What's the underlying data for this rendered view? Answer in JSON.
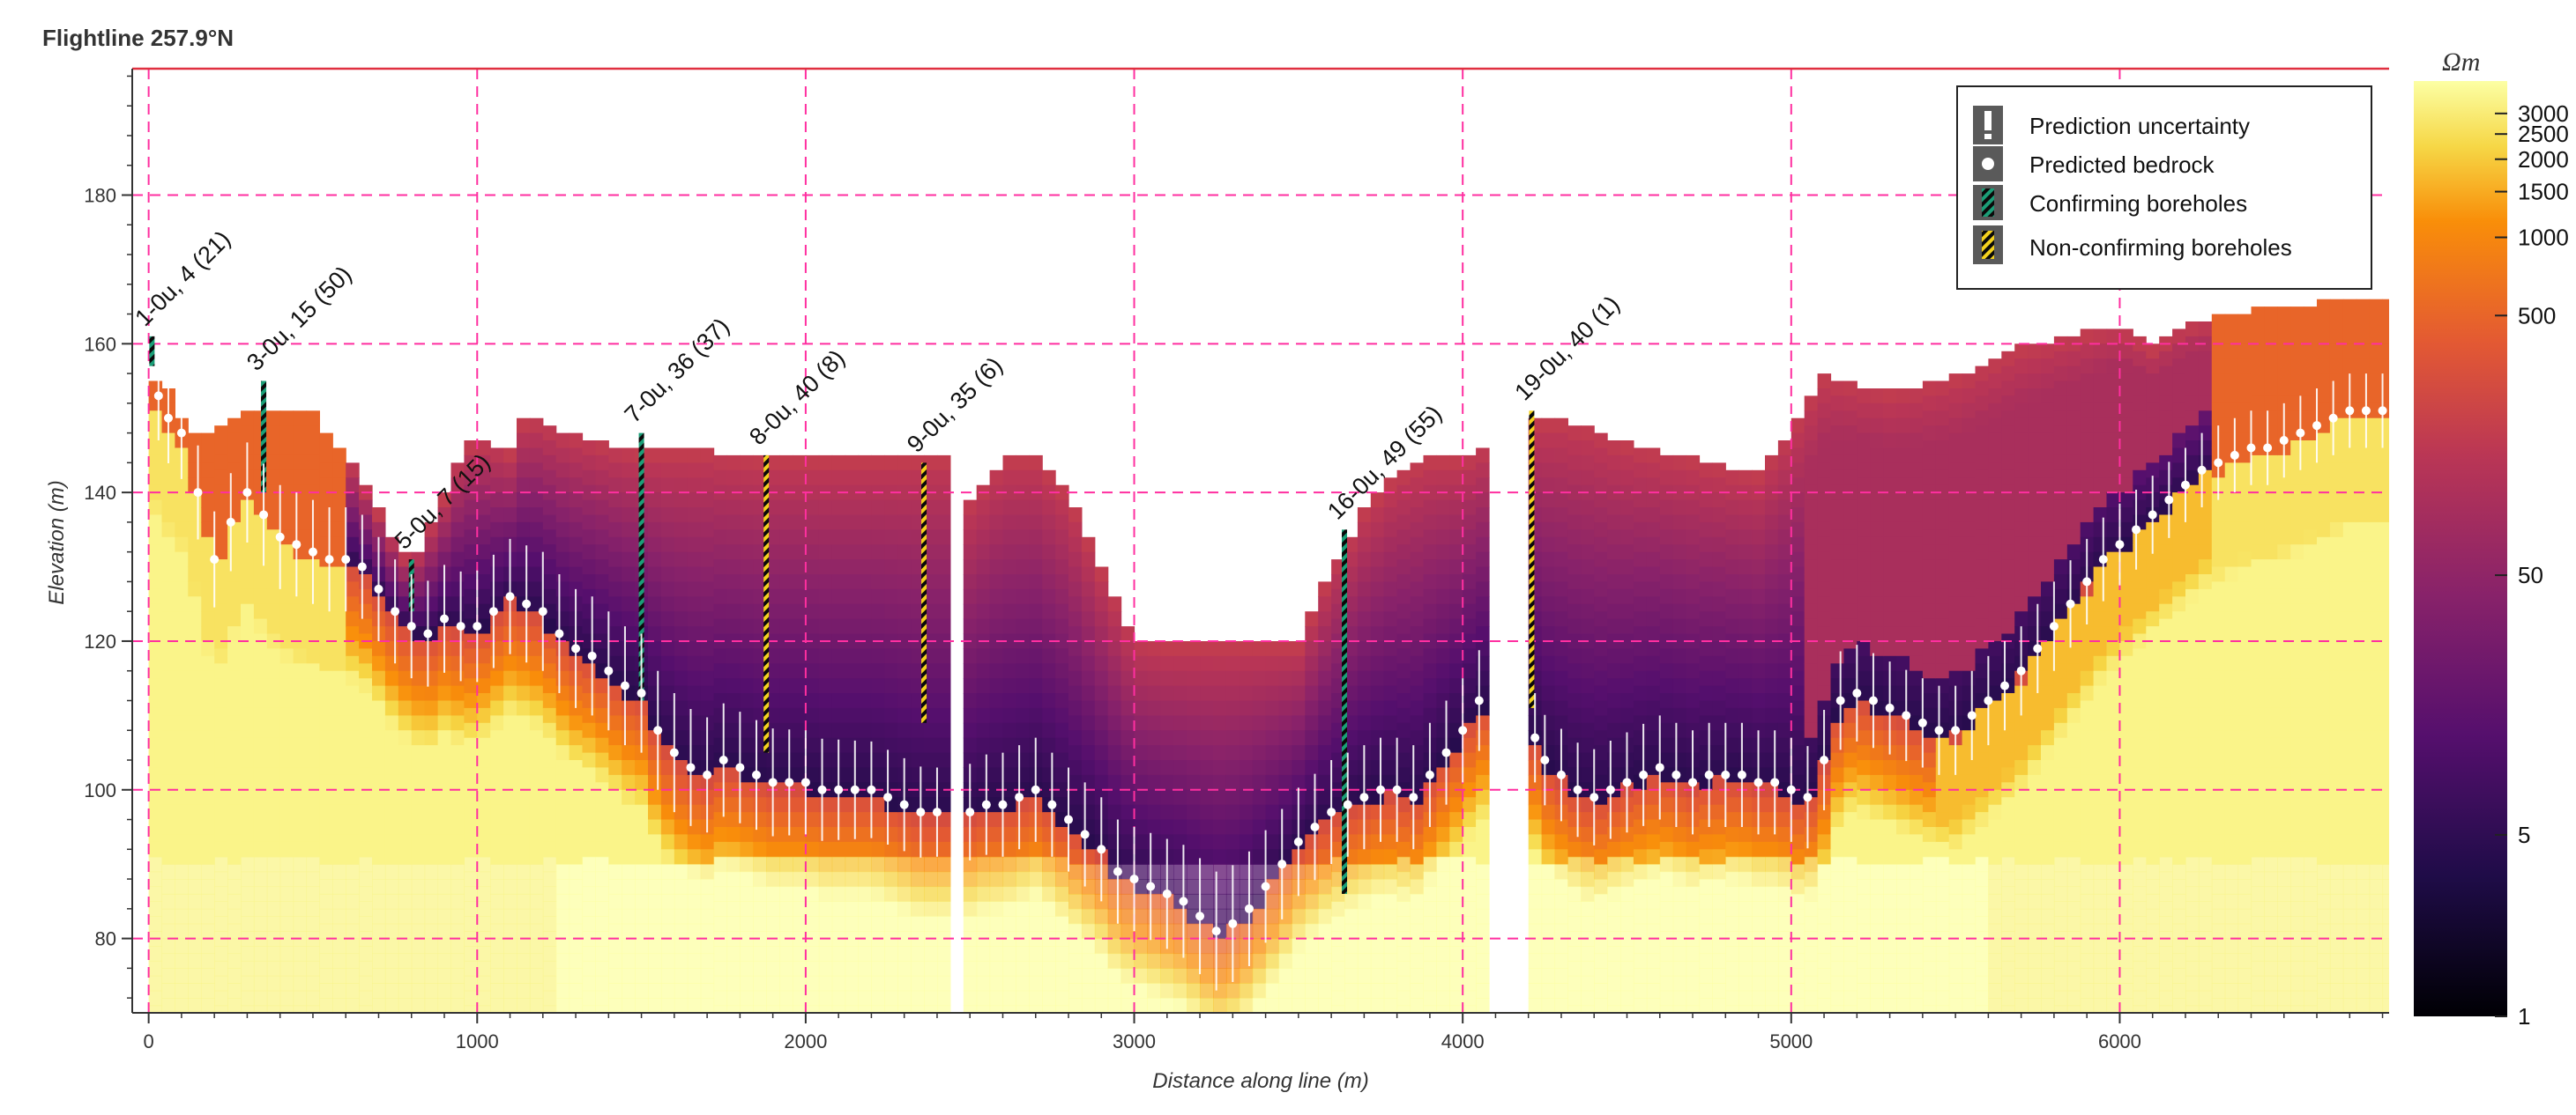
{
  "chart_data": {
    "type": "heatmap",
    "title": "Flightline 257.9°N",
    "xlabel": "Distance along line (m)",
    "ylabel": "Elevation (m)",
    "xlim": [
      -50,
      6820
    ],
    "ylim": [
      70,
      197
    ],
    "x_ticks": [
      0,
      1000,
      2000,
      3000,
      4000,
      5000,
      6000
    ],
    "y_ticks": [
      80,
      100,
      120,
      140,
      160,
      180
    ],
    "reference_line_elevation": 197,
    "colorbar": {
      "unit": "Ωm",
      "scale": "log",
      "range": [
        1,
        4000
      ],
      "tick_values": [
        1,
        5,
        50,
        500,
        1000,
        1500,
        2000,
        2500,
        3000
      ],
      "tick_labels": [
        "1",
        "5",
        "50",
        "500",
        "1000",
        "1500",
        "2000",
        "2500",
        "3000"
      ]
    },
    "legend": {
      "position": "top-right",
      "items": [
        {
          "label": "Prediction uncertainty",
          "symbol": "errorbar"
        },
        {
          "label": "Predicted bedrock",
          "symbol": "dot"
        },
        {
          "label": "Confirming boreholes",
          "symbol": "green-stripe"
        },
        {
          "label": "Non-confirming boreholes",
          "symbol": "yellow-stripe"
        }
      ]
    },
    "data_gaps": [
      [
        2420,
        2490
      ],
      [
        4070,
        4210
      ]
    ],
    "surface_elevation": {
      "x": [
        0,
        50,
        100,
        150,
        200,
        300,
        400,
        500,
        550,
        600,
        650,
        700,
        750,
        800,
        900,
        950,
        1000,
        1100,
        1150,
        1250,
        1400,
        1500,
        1700,
        1850,
        2000,
        2100,
        2200,
        2300,
        2420,
        2490,
        2600,
        2700,
        2800,
        2900,
        3000,
        3100,
        3200,
        3300,
        3400,
        3500,
        3550,
        3600,
        3650,
        3700,
        3800,
        3900,
        4000,
        4070,
        4210,
        4300,
        4400,
        4500,
        4600,
        4700,
        4800,
        4900,
        5000,
        5100,
        5200,
        5300,
        5400,
        5500,
        5600,
        5700,
        5800,
        5900,
        6000,
        6100,
        6200,
        6300,
        6400,
        6500,
        6600,
        6700,
        6800
      ],
      "y": [
        156,
        155,
        150,
        148,
        149,
        151,
        151,
        151,
        148,
        146,
        142,
        138,
        134,
        131,
        140,
        146,
        148,
        146,
        151,
        149,
        147,
        146,
        146,
        145,
        145,
        145,
        145,
        145,
        145,
        139,
        145,
        145,
        140,
        130,
        121,
        120,
        120,
        120,
        120,
        120,
        125,
        130,
        134,
        138,
        143,
        145,
        145,
        147,
        150,
        150,
        149,
        147,
        146,
        145,
        144,
        143,
        149,
        156,
        155,
        154,
        155,
        156,
        158,
        160,
        161,
        162,
        163,
        160,
        163,
        164,
        165,
        165,
        166,
        166,
        166
      ]
    },
    "series": [
      {
        "name": "Predicted bedrock",
        "x": [
          30,
          60,
          100,
          150,
          200,
          250,
          300,
          350,
          400,
          450,
          500,
          550,
          600,
          650,
          700,
          750,
          800,
          850,
          900,
          950,
          1000,
          1050,
          1100,
          1150,
          1200,
          1250,
          1300,
          1350,
          1400,
          1450,
          1500,
          1550,
          1600,
          1650,
          1700,
          1750,
          1800,
          1850,
          1900,
          1950,
          2000,
          2050,
          2100,
          2150,
          2200,
          2250,
          2300,
          2350,
          2400,
          2500,
          2550,
          2600,
          2650,
          2700,
          2750,
          2800,
          2850,
          2900,
          2950,
          3000,
          3050,
          3100,
          3150,
          3200,
          3250,
          3300,
          3350,
          3400,
          3450,
          3500,
          3550,
          3600,
          3650,
          3700,
          3750,
          3800,
          3850,
          3900,
          3950,
          4000,
          4050,
          4220,
          4250,
          4300,
          4350,
          4400,
          4450,
          4500,
          4550,
          4600,
          4650,
          4700,
          4750,
          4800,
          4850,
          4900,
          4950,
          5000,
          5050,
          5100,
          5150,
          5200,
          5250,
          5300,
          5350,
          5400,
          5450,
          5500,
          5550,
          5600,
          5650,
          5700,
          5750,
          5800,
          5850,
          5900,
          5950,
          6000,
          6050,
          6100,
          6150,
          6200,
          6250,
          6300,
          6350,
          6400,
          6450,
          6500,
          6550,
          6600,
          6650,
          6700,
          6750,
          6800
        ],
        "values": [
          153,
          150,
          148,
          140,
          131,
          136,
          140,
          137,
          134,
          133,
          132,
          131,
          131,
          130,
          127,
          124,
          122,
          121,
          123,
          122,
          122,
          124,
          126,
          125,
          124,
          121,
          119,
          118,
          116,
          114,
          113,
          108,
          105,
          103,
          102,
          104,
          103,
          102,
          101,
          101,
          101,
          100,
          100,
          100,
          100,
          99,
          98,
          97,
          97,
          97,
          98,
          98,
          99,
          100,
          98,
          96,
          94,
          92,
          89,
          88,
          87,
          86,
          85,
          83,
          81,
          82,
          84,
          87,
          90,
          93,
          95,
          97,
          98,
          99,
          100,
          100,
          99,
          102,
          105,
          108,
          112,
          107,
          104,
          102,
          100,
          99,
          100,
          101,
          102,
          103,
          102,
          101,
          102,
          102,
          102,
          101,
          101,
          100,
          99,
          104,
          112,
          113,
          112,
          111,
          110,
          109,
          108,
          108,
          110,
          112,
          114,
          116,
          119,
          122,
          125,
          128,
          131,
          133,
          135,
          137,
          139,
          141,
          143,
          144,
          145,
          146,
          146,
          147,
          148,
          149,
          150,
          151,
          151,
          151
        ]
      },
      {
        "name": "Prediction uncertainty (±m)",
        "x": [
          30,
          400,
          800,
          1200,
          1600,
          2000,
          2400,
          2600,
          3000,
          3250,
          3600,
          4000,
          4220,
          4600,
          5000,
          5400,
          5800,
          6200,
          6800
        ],
        "values": [
          6,
          7,
          7,
          8,
          8,
          7,
          6,
          7,
          7,
          8,
          7,
          7,
          6,
          7,
          7,
          6,
          6,
          5,
          5
        ]
      }
    ],
    "boreholes": [
      {
        "label": "1-0u, 4 (21)",
        "x": 10,
        "top": 161,
        "bottom": 157,
        "status": "confirming"
      },
      {
        "label": "3-0u, 15 (50)",
        "x": 350,
        "top": 155,
        "bottom": 140,
        "status": "confirming"
      },
      {
        "label": "5-0u, 7 (15)",
        "x": 800,
        "top": 131,
        "bottom": 124,
        "status": "confirming"
      },
      {
        "label": "7-0u, 36 (37)",
        "x": 1500,
        "top": 148,
        "bottom": 112,
        "status": "confirming"
      },
      {
        "label": "8-0u, 40 (8)",
        "x": 1880,
        "top": 145,
        "bottom": 105,
        "status": "non-confirming"
      },
      {
        "label": "9-0u, 35 (6)",
        "x": 2360,
        "top": 144,
        "bottom": 109,
        "status": "non-confirming"
      },
      {
        "label": "16-0u, 49 (55)",
        "x": 3640,
        "top": 135,
        "bottom": 86,
        "status": "confirming"
      },
      {
        "label": "19-0u, 40 (1)",
        "x": 4210,
        "top": 151,
        "bottom": 111,
        "status": "non-confirming"
      }
    ]
  }
}
